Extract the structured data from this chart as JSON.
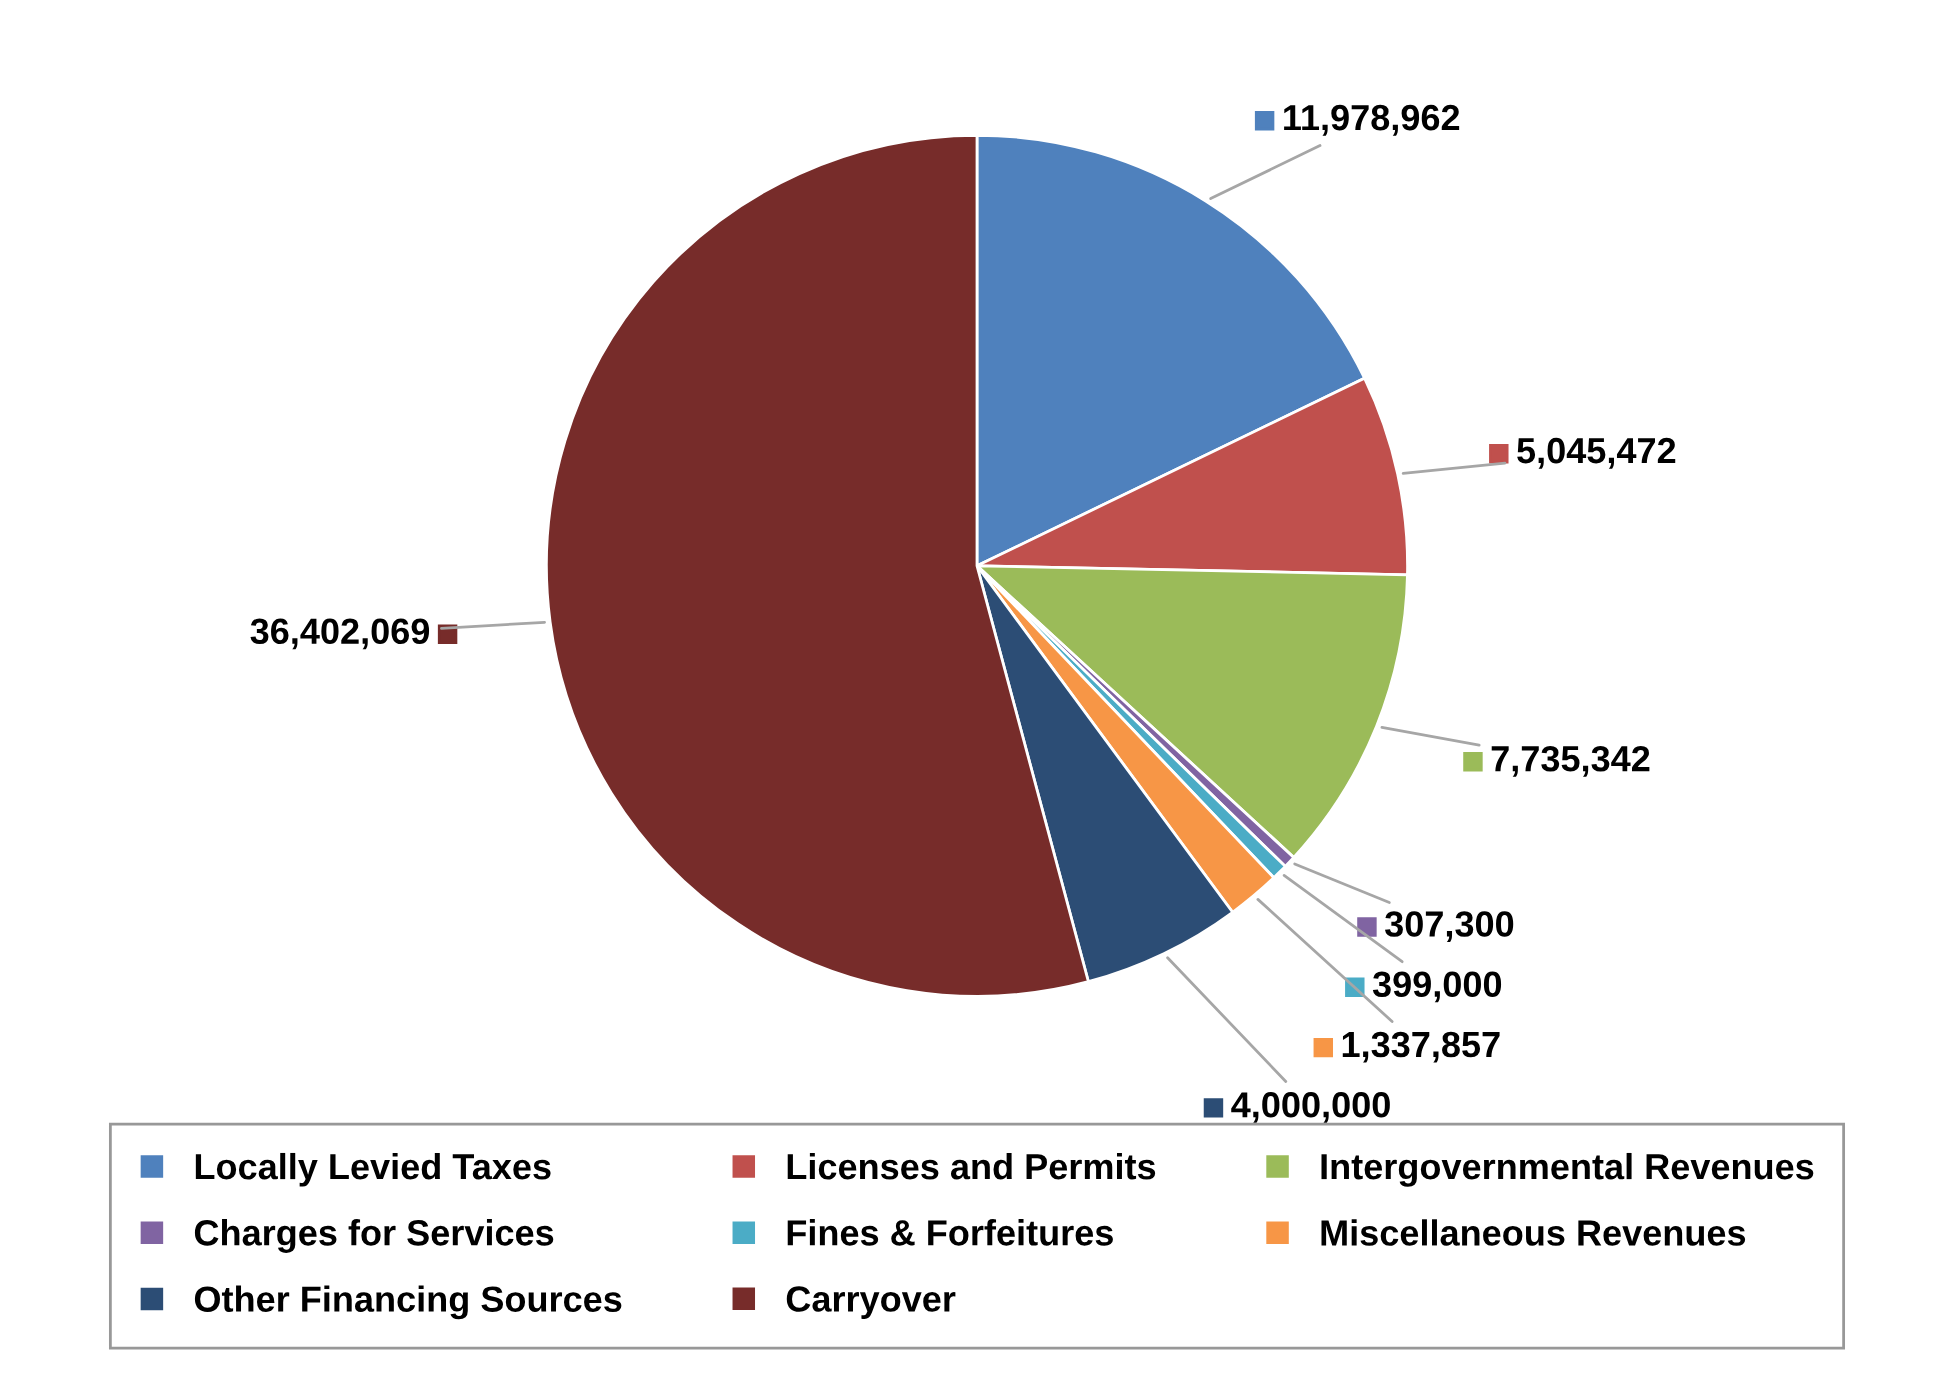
{
  "chart_data": {
    "type": "pie",
    "categories": [
      "Locally Levied Taxes",
      "Licenses and Permits",
      "Intergovernmental Revenues",
      "Charges for Services",
      "Fines & Forfeitures",
      "Miscellaneous Revenues",
      "Other Financing Sources",
      "Carryover"
    ],
    "values": [
      11978962,
      5045472,
      7735342,
      307300,
      399000,
      1337857,
      4000000,
      36402069
    ],
    "colors": [
      "#4f81bd",
      "#c0504d",
      "#9bbb59",
      "#8064a2",
      "#4bacc6",
      "#f79646",
      "#2c4d75",
      "#772c2a"
    ],
    "value_labels": [
      "11,978,962",
      "5,045,472",
      "7,735,342",
      "307,300",
      "399,000",
      "1,337,857",
      "4,000,000",
      "36,402,069"
    ],
    "legend": "bottom"
  }
}
